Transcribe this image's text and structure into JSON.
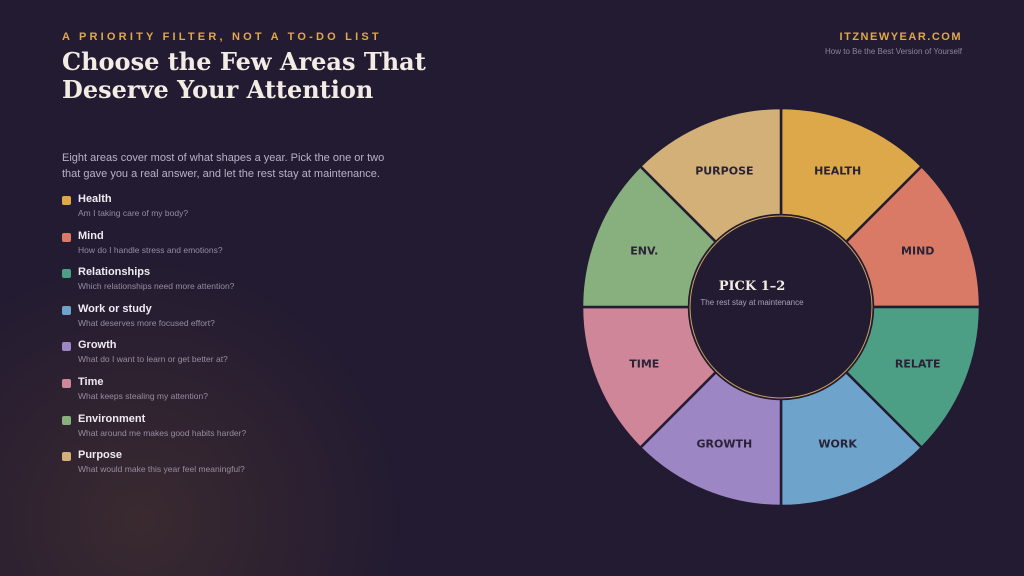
{
  "header": {
    "kicker": "A PRIORITY FILTER, NOT A TO-DO LIST",
    "title_line1": "Choose the Few Areas That",
    "title_line2": "Deserve Your Attention",
    "site": "ITZNEWYEAR.COM",
    "tagline": "How to Be the Best Version of Yourself"
  },
  "intro": {
    "line1": "Eight areas cover most of what shapes a year. Pick the one or two",
    "line2": "that gave you a real answer, and let the rest stay at maintenance."
  },
  "areas": [
    {
      "name": "Health",
      "question": "Am I taking care of my body?",
      "color": "#dca84a"
    },
    {
      "name": "Mind",
      "question": "How do I handle stress and emotions?",
      "color": "#d87a66"
    },
    {
      "name": "Relationships",
      "question": "Which relationships need more attention?",
      "color": "#4c9e85"
    },
    {
      "name": "Work or study",
      "question": "What deserves more focused effort?",
      "color": "#6ea3cc"
    },
    {
      "name": "Growth",
      "question": "What do I want to learn or get better at?",
      "color": "#9c86c4"
    },
    {
      "name": "Time",
      "question": "What keeps stealing my attention?",
      "color": "#d08699"
    },
    {
      "name": "Environment",
      "question": "What around me makes good habits harder?",
      "color": "#88b07e"
    },
    {
      "name": "Purpose",
      "question": "What would make this year feel meaningful?",
      "color": "#d2b078"
    }
  ],
  "wheel": {
    "segments": [
      "HEALTH",
      "MIND",
      "RELATE",
      "WORK",
      "GROWTH",
      "TIME",
      "ENV.",
      "PURPOSE"
    ],
    "center_title": "PICK 1–2",
    "center_subtitle": "The rest stay at maintenance"
  }
}
